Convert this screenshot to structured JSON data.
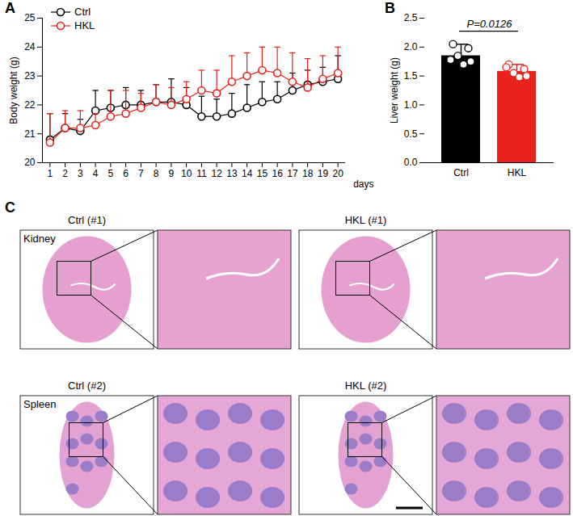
{
  "chart_data": [
    {
      "panel_label": "A",
      "type": "line",
      "x_label": "days",
      "y_label": "Body weight (g)",
      "x": [
        1,
        2,
        3,
        4,
        5,
        6,
        7,
        8,
        9,
        10,
        11,
        12,
        13,
        14,
        15,
        16,
        17,
        18,
        19,
        20
      ],
      "xlim": [
        0.5,
        20.5
      ],
      "xticks": [
        1,
        2,
        3,
        4,
        5,
        6,
        7,
        8,
        9,
        10,
        11,
        12,
        13,
        14,
        15,
        16,
        17,
        18,
        19,
        20
      ],
      "ylim": [
        20,
        25
      ],
      "yticks": [
        20,
        21,
        22,
        23,
        24,
        25
      ],
      "legend": "top-left",
      "marker": "open-circle",
      "series": [
        {
          "name": "Ctrl",
          "color": "#000000",
          "values": [
            20.8,
            21.2,
            21.1,
            21.8,
            21.9,
            22.0,
            22.0,
            22.1,
            22.1,
            22.0,
            21.6,
            21.6,
            21.7,
            21.9,
            22.1,
            22.2,
            22.5,
            22.7,
            22.8,
            22.9
          ],
          "errors": [
            0.9,
            0.5,
            0.4,
            0.7,
            0.6,
            0.6,
            0.5,
            0.6,
            0.8,
            0.6,
            0.7,
            0.6,
            0.7,
            0.8,
            0.7,
            0.6,
            0.6,
            0.5,
            0.5,
            0.8
          ]
        },
        {
          "name": "HKL",
          "color": "#e8231b",
          "values": [
            20.7,
            21.2,
            21.2,
            21.3,
            21.6,
            21.7,
            21.9,
            22.1,
            22.0,
            22.2,
            22.5,
            22.4,
            22.8,
            23.0,
            23.2,
            23.1,
            22.8,
            22.6,
            22.9,
            23.1
          ],
          "errors": [
            1.0,
            0.6,
            0.6,
            0.4,
            0.9,
            0.8,
            0.5,
            0.6,
            0.6,
            0.6,
            0.7,
            0.8,
            0.9,
            0.8,
            0.8,
            0.9,
            1.0,
            1.0,
            0.8,
            0.9
          ]
        }
      ]
    },
    {
      "panel_label": "B",
      "type": "bar",
      "y_label": "Liver weight (g)",
      "categories": [
        "Ctrl",
        "HKL"
      ],
      "values": [
        1.85,
        1.58
      ],
      "errors": [
        0.2,
        0.12
      ],
      "colors": [
        "#000000",
        "#e8231b"
      ],
      "points": [
        [
          2.05,
          1.98,
          1.85,
          1.75,
          1.7,
          1.78
        ],
        [
          1.7,
          1.62,
          1.55,
          1.5,
          1.48,
          1.65
        ]
      ],
      "ylim": [
        0,
        2.5
      ],
      "yticks": [
        {
          "value": 0,
          "label": "0.0"
        },
        0.5,
        {
          "value": 1,
          "label": "1.0"
        },
        1.5,
        {
          "value": 2,
          "label": "2.0"
        },
        2.5
      ],
      "annotations": [
        {
          "text": "P=0.0126",
          "from": "Ctrl",
          "to": "HKL"
        }
      ]
    }
  ],
  "panel_c": {
    "panel_label": "C",
    "rows": [
      {
        "tissue": "Kidney",
        "images": [
          "Ctrl (#1)",
          "HKL (#1)"
        ]
      },
      {
        "tissue": "Spleen",
        "images": [
          "Ctrl (#2)",
          "HKL (#2)"
        ]
      }
    ]
  }
}
